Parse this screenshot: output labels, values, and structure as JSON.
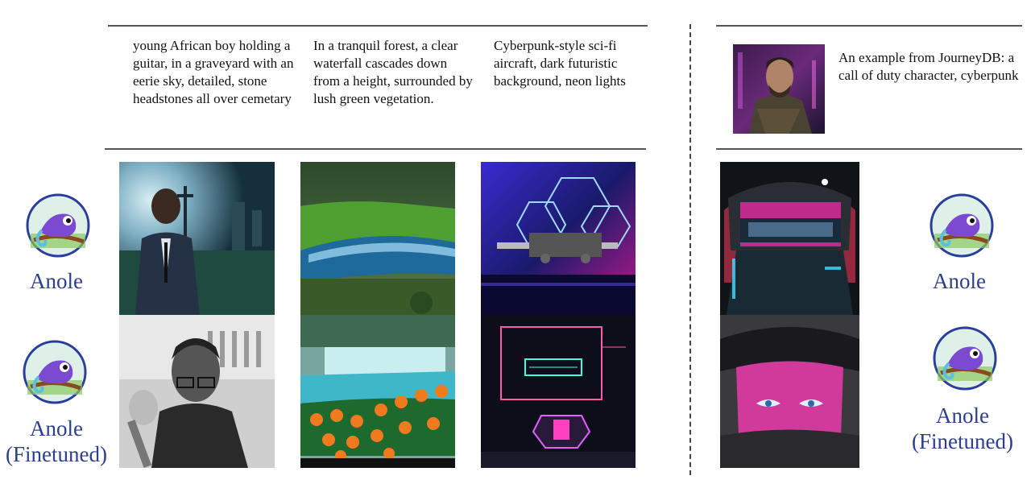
{
  "prompts": [
    "young African boy holding a guitar, in a graveyard with an eerie sky, detailed, stone headstones all over cemetary",
    "In a tranquil forest, a clear waterfall cascades down from a height, surrounded by lush green vegetation.",
    "Cyberpunk-style sci-fi aircraft, dark futuristic background, neon lights"
  ],
  "journeydb": {
    "caption": "An example from JourneyDB: a call of duty character, cyberpunk"
  },
  "labels": {
    "anole": "Anole",
    "finetuned_line1": "Anole",
    "finetuned_line2": "(Finetuned)"
  },
  "colors": {
    "label": "#2b3f8c",
    "rule": "#555555"
  },
  "icons": [
    "chameleon-logo-icon"
  ]
}
